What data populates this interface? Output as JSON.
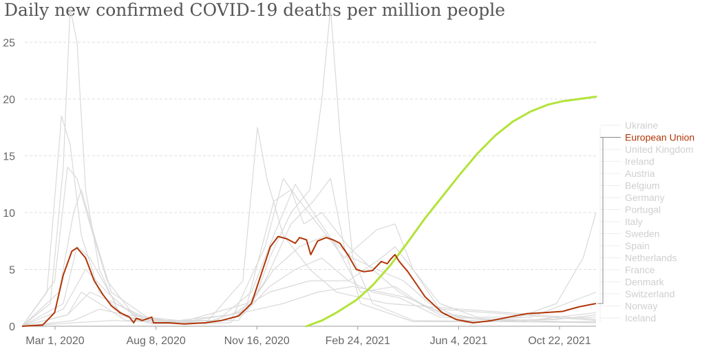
{
  "title": "Daily new confirmed COVID-19 deaths per million people",
  "colors": {
    "highlight": "#b13507",
    "trend": "#b2e339",
    "background_lines": "#d9d9d9",
    "legend_muted": "#cfcfcf",
    "grid": "#dddddd"
  },
  "chart_data": {
    "type": "line",
    "title": "Daily new confirmed COVID-19 deaths per million people",
    "xlabel": "",
    "ylabel": "",
    "ylim": [
      0,
      27.5
    ],
    "grid": "horizontal dashed",
    "legend_placement": "right",
    "x_tick_labels": [
      "Mar 1, 2020",
      "Aug 8, 2020",
      "Nov 16, 2020",
      "Feb 24, 2021",
      "Jun 4, 2021",
      "Oct 22, 2021"
    ],
    "y_ticks": [
      0,
      5,
      10,
      15,
      20,
      25
    ],
    "x_domain": [
      "2020-02-01",
      "2021-11-30"
    ],
    "legend": [
      "Ukraine",
      "European Union",
      "United Kingdom",
      "Ireland",
      "Austria",
      "Belgium",
      "Germany",
      "Portugal",
      "Italy",
      "Sweden",
      "Spain",
      "Netherlands",
      "France",
      "Denmark",
      "Switzerland",
      "Norway",
      "Iceland"
    ],
    "highlighted_series": "European Union",
    "series": [
      {
        "name": "European Union",
        "highlight": true,
        "points": [
          [
            "2020-02-01",
            0
          ],
          [
            "2020-02-25",
            0.1
          ],
          [
            "2020-03-10",
            1.2
          ],
          [
            "2020-03-20",
            4.5
          ],
          [
            "2020-03-30",
            6.6
          ],
          [
            "2020-04-05",
            6.9
          ],
          [
            "2020-04-15",
            6.0
          ],
          [
            "2020-04-25",
            4.0
          ],
          [
            "2020-05-05",
            2.8
          ],
          [
            "2020-05-15",
            1.8
          ],
          [
            "2020-05-25",
            1.2
          ],
          [
            "2020-06-05",
            0.8
          ],
          [
            "2020-06-10",
            0.3
          ],
          [
            "2020-06-13",
            0.7
          ],
          [
            "2020-06-20",
            0.5
          ],
          [
            "2020-07-01",
            0.8
          ],
          [
            "2020-07-03",
            0.3
          ],
          [
            "2020-07-20",
            0.3
          ],
          [
            "2020-08-08",
            0.2
          ],
          [
            "2020-09-01",
            0.3
          ],
          [
            "2020-09-20",
            0.5
          ],
          [
            "2020-10-10",
            0.9
          ],
          [
            "2020-10-25",
            2.0
          ],
          [
            "2020-11-05",
            4.5
          ],
          [
            "2020-11-16",
            7.0
          ],
          [
            "2020-11-25",
            7.9
          ],
          [
            "2020-12-05",
            7.7
          ],
          [
            "2020-12-15",
            7.3
          ],
          [
            "2020-12-20",
            7.8
          ],
          [
            "2020-12-28",
            7.6
          ],
          [
            "2021-01-02",
            6.3
          ],
          [
            "2021-01-10",
            7.5
          ],
          [
            "2021-01-20",
            7.8
          ],
          [
            "2021-01-28",
            7.6
          ],
          [
            "2021-02-05",
            7.3
          ],
          [
            "2021-02-15",
            6.2
          ],
          [
            "2021-02-24",
            5.0
          ],
          [
            "2021-03-05",
            4.8
          ],
          [
            "2021-03-15",
            4.9
          ],
          [
            "2021-03-25",
            5.7
          ],
          [
            "2021-04-01",
            5.5
          ],
          [
            "2021-04-05",
            5.9
          ],
          [
            "2021-04-10",
            6.3
          ],
          [
            "2021-04-15",
            5.7
          ],
          [
            "2021-04-25",
            4.8
          ],
          [
            "2021-05-05",
            3.7
          ],
          [
            "2021-05-15",
            2.6
          ],
          [
            "2021-06-04",
            1.2
          ],
          [
            "2021-06-20",
            0.6
          ],
          [
            "2021-07-10",
            0.3
          ],
          [
            "2021-08-01",
            0.5
          ],
          [
            "2021-08-20",
            0.8
          ],
          [
            "2021-09-10",
            1.1
          ],
          [
            "2021-10-01",
            1.2
          ],
          [
            "2021-10-22",
            1.3
          ],
          [
            "2021-11-10",
            1.7
          ],
          [
            "2021-11-30",
            2.0
          ]
        ]
      },
      {
        "name": "trend",
        "trend": true,
        "points": [
          [
            "2020-12-28",
            0
          ],
          [
            "2021-01-15",
            0.5
          ],
          [
            "2021-02-01",
            1.2
          ],
          [
            "2021-02-24",
            2.3
          ],
          [
            "2021-03-15",
            3.6
          ],
          [
            "2021-04-05",
            5.4
          ],
          [
            "2021-04-25",
            7.4
          ],
          [
            "2021-05-15",
            9.5
          ],
          [
            "2021-06-04",
            11.4
          ],
          [
            "2021-06-25",
            13.4
          ],
          [
            "2021-07-15",
            15.2
          ],
          [
            "2021-08-05",
            16.8
          ],
          [
            "2021-08-25",
            18.0
          ],
          [
            "2021-09-15",
            18.9
          ],
          [
            "2021-10-05",
            19.5
          ],
          [
            "2021-10-22",
            19.8
          ],
          [
            "2021-11-30",
            20.2
          ]
        ]
      },
      {
        "name": "",
        "background": true,
        "points": [
          [
            "2020-02-01",
            0
          ],
          [
            "2020-03-05",
            2
          ],
          [
            "2020-03-20",
            14
          ],
          [
            "2020-03-28",
            28
          ],
          [
            "2020-04-05",
            25
          ],
          [
            "2020-04-15",
            12
          ],
          [
            "2020-05-01",
            5
          ],
          [
            "2020-05-25",
            1
          ],
          [
            "2020-07-01",
            0.2
          ],
          [
            "2020-10-01",
            0.3
          ],
          [
            "2020-11-01",
            3
          ],
          [
            "2020-11-15",
            6
          ],
          [
            "2020-12-10",
            10
          ],
          [
            "2021-01-01",
            12
          ],
          [
            "2021-01-15",
            20
          ],
          [
            "2021-01-25",
            28
          ],
          [
            "2021-02-05",
            17
          ],
          [
            "2021-02-20",
            6
          ],
          [
            "2021-03-15",
            2
          ],
          [
            "2021-05-01",
            0.5
          ],
          [
            "2021-11-30",
            0.3
          ]
        ]
      },
      {
        "name": "",
        "background": true,
        "points": [
          [
            "2020-02-01",
            0
          ],
          [
            "2020-03-01",
            3
          ],
          [
            "2020-03-18",
            18.5
          ],
          [
            "2020-03-28",
            16
          ],
          [
            "2020-04-10",
            8
          ],
          [
            "2020-05-01",
            3
          ],
          [
            "2020-06-01",
            0.8
          ],
          [
            "2020-09-01",
            0.2
          ],
          [
            "2020-10-15",
            4
          ],
          [
            "2020-11-01",
            17.5
          ],
          [
            "2020-11-12",
            13
          ],
          [
            "2020-12-01",
            8
          ],
          [
            "2021-01-01",
            5
          ],
          [
            "2021-02-01",
            3
          ],
          [
            "2021-04-01",
            2
          ],
          [
            "2021-11-30",
            0.6
          ]
        ]
      },
      {
        "name": "",
        "background": true,
        "points": [
          [
            "2020-02-01",
            0
          ],
          [
            "2020-03-10",
            4
          ],
          [
            "2020-03-25",
            14
          ],
          [
            "2020-04-05",
            13
          ],
          [
            "2020-04-20",
            9
          ],
          [
            "2020-05-10",
            4
          ],
          [
            "2020-06-10",
            1
          ],
          [
            "2020-08-01",
            0.3
          ],
          [
            "2020-10-20",
            2
          ],
          [
            "2020-11-20",
            11
          ],
          [
            "2020-12-10",
            12
          ],
          [
            "2020-12-25",
            9
          ],
          [
            "2021-01-15",
            10
          ],
          [
            "2021-02-15",
            7
          ],
          [
            "2021-03-15",
            5
          ],
          [
            "2021-04-15",
            3
          ],
          [
            "2021-06-01",
            1
          ],
          [
            "2021-09-01",
            0.4
          ],
          [
            "2021-11-30",
            1.2
          ]
        ]
      },
      {
        "name": "",
        "background": true,
        "points": [
          [
            "2020-02-01",
            0
          ],
          [
            "2020-03-15",
            3
          ],
          [
            "2020-04-01",
            10
          ],
          [
            "2020-04-10",
            12
          ],
          [
            "2020-04-25",
            8
          ],
          [
            "2020-05-15",
            3
          ],
          [
            "2020-07-01",
            0.5
          ],
          [
            "2020-10-01",
            0.5
          ],
          [
            "2020-11-10",
            7
          ],
          [
            "2020-12-01",
            13
          ],
          [
            "2020-12-20",
            11
          ],
          [
            "2021-01-10",
            9
          ],
          [
            "2021-02-10",
            6
          ],
          [
            "2021-03-20",
            8.5
          ],
          [
            "2021-04-10",
            9
          ],
          [
            "2021-05-01",
            5
          ],
          [
            "2021-06-01",
            1.5
          ],
          [
            "2021-11-30",
            0.5
          ]
        ]
      },
      {
        "name": "",
        "background": true,
        "points": [
          [
            "2020-02-01",
            0
          ],
          [
            "2020-03-20",
            2
          ],
          [
            "2020-04-05",
            7
          ],
          [
            "2020-04-20",
            6
          ],
          [
            "2020-05-20",
            2
          ],
          [
            "2020-07-01",
            0.3
          ],
          [
            "2020-09-15",
            0.5
          ],
          [
            "2020-10-25",
            3
          ],
          [
            "2020-11-20",
            8
          ],
          [
            "2020-12-15",
            12.5
          ],
          [
            "2021-01-05",
            10
          ],
          [
            "2021-02-01",
            7
          ],
          [
            "2021-03-01",
            3
          ],
          [
            "2021-04-10",
            3.5
          ],
          [
            "2021-05-10",
            2
          ],
          [
            "2021-07-01",
            0.3
          ],
          [
            "2021-11-30",
            0.8
          ]
        ]
      },
      {
        "name": "",
        "background": true,
        "points": [
          [
            "2020-02-01",
            0
          ],
          [
            "2020-03-25",
            1
          ],
          [
            "2020-04-10",
            3
          ],
          [
            "2020-05-01",
            2
          ],
          [
            "2020-06-01",
            0.5
          ],
          [
            "2020-10-10",
            0.5
          ],
          [
            "2020-11-10",
            4
          ],
          [
            "2020-12-10",
            9
          ],
          [
            "2021-01-05",
            11
          ],
          [
            "2021-01-25",
            13
          ],
          [
            "2021-02-10",
            7
          ],
          [
            "2021-03-01",
            2
          ],
          [
            "2021-05-01",
            0.4
          ],
          [
            "2021-11-30",
            0.4
          ]
        ]
      },
      {
        "name": "",
        "background": true,
        "points": [
          [
            "2020-02-01",
            0
          ],
          [
            "2020-03-20",
            1.5
          ],
          [
            "2020-04-15",
            5
          ],
          [
            "2020-05-10",
            3
          ],
          [
            "2020-06-15",
            0.6
          ],
          [
            "2020-09-01",
            0.3
          ],
          [
            "2020-10-20",
            1.5
          ],
          [
            "2020-11-20",
            5
          ],
          [
            "2020-12-20",
            7
          ],
          [
            "2021-01-20",
            8
          ],
          [
            "2021-02-20",
            6
          ],
          [
            "2021-03-20",
            5
          ],
          [
            "2021-04-20",
            4
          ],
          [
            "2021-05-20",
            2
          ],
          [
            "2021-07-01",
            0.5
          ],
          [
            "2021-09-15",
            0.8
          ],
          [
            "2021-11-30",
            3
          ]
        ]
      },
      {
        "name": "",
        "background": true,
        "points": [
          [
            "2020-02-01",
            0
          ],
          [
            "2020-04-01",
            0.5
          ],
          [
            "2020-05-01",
            1.5
          ],
          [
            "2020-06-01",
            1
          ],
          [
            "2020-08-01",
            0.5
          ],
          [
            "2020-10-01",
            1
          ],
          [
            "2020-11-15",
            3
          ],
          [
            "2021-01-01",
            4
          ],
          [
            "2021-02-15",
            4
          ],
          [
            "2021-03-25",
            6
          ],
          [
            "2021-04-10",
            7
          ],
          [
            "2021-05-01",
            5
          ],
          [
            "2021-06-01",
            2
          ],
          [
            "2021-07-15",
            0.8
          ],
          [
            "2021-09-01",
            0.8
          ],
          [
            "2021-10-15",
            2
          ],
          [
            "2021-11-15",
            6
          ],
          [
            "2021-11-30",
            10
          ]
        ]
      },
      {
        "name": "",
        "background": true,
        "points": [
          [
            "2020-02-01",
            0
          ],
          [
            "2020-03-25",
            1
          ],
          [
            "2020-04-20",
            3
          ],
          [
            "2020-05-20",
            2
          ],
          [
            "2020-07-01",
            0.5
          ],
          [
            "2020-09-01",
            0.2
          ],
          [
            "2020-10-15",
            1
          ],
          [
            "2020-11-15",
            3.5
          ],
          [
            "2020-12-15",
            5
          ],
          [
            "2021-01-15",
            6
          ],
          [
            "2021-02-15",
            4
          ],
          [
            "2021-03-15",
            3
          ],
          [
            "2021-04-15",
            2.5
          ],
          [
            "2021-06-01",
            0.8
          ],
          [
            "2021-11-30",
            0.3
          ]
        ]
      },
      {
        "name": "",
        "background": true,
        "points": [
          [
            "2020-02-01",
            0
          ],
          [
            "2020-04-01",
            0.3
          ],
          [
            "2020-05-15",
            0.5
          ],
          [
            "2020-08-01",
            0.3
          ],
          [
            "2020-10-15",
            1.2
          ],
          [
            "2020-12-01",
            2
          ],
          [
            "2021-01-10",
            3
          ],
          [
            "2021-02-20",
            3.5
          ],
          [
            "2021-03-25",
            3
          ],
          [
            "2021-04-25",
            2.5
          ],
          [
            "2021-06-01",
            1.2
          ],
          [
            "2021-08-01",
            0.5
          ],
          [
            "2021-10-15",
            0.6
          ],
          [
            "2021-11-30",
            1
          ]
        ]
      }
    ]
  }
}
